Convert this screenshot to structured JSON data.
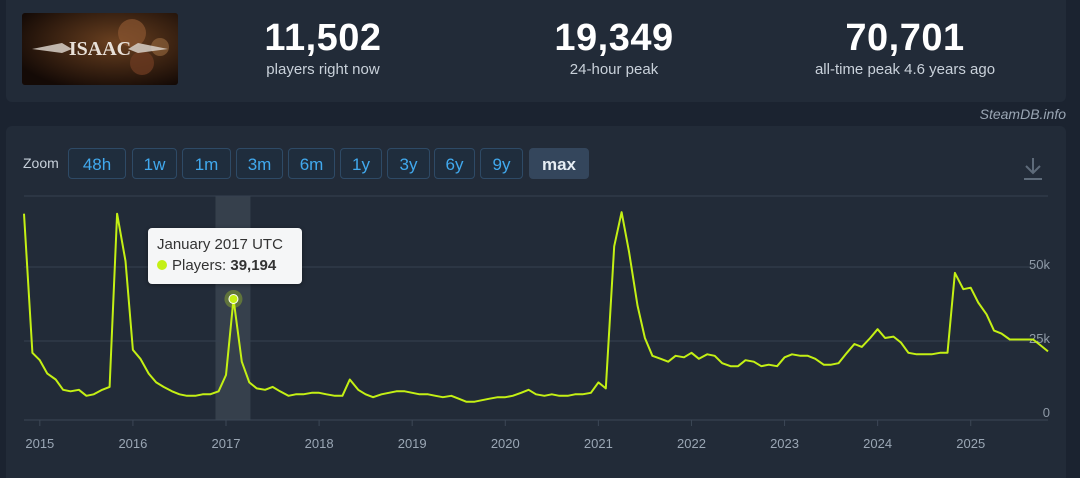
{
  "stats": [
    {
      "value": "11,502",
      "label": "players right now"
    },
    {
      "value": "19,349",
      "label": "24-hour peak"
    },
    {
      "value": "70,701",
      "label": "all-time peak 4.6 years ago"
    }
  ],
  "game_logo_text": "ISAAC",
  "source": "SteamDB.info",
  "zoom": {
    "label": "Zoom",
    "buttons": [
      "48h",
      "1w",
      "1m",
      "3m",
      "6m",
      "1y",
      "3y",
      "6y",
      "9y",
      "max"
    ],
    "active": "max"
  },
  "tooltip": {
    "title": "January 2017 UTC",
    "series_label": "Players:",
    "value": "39,194"
  },
  "colors": {
    "line": "#c4f014",
    "accent": "#41a9ee",
    "background": "#1b2330",
    "panel": "#222b38"
  },
  "chart_data": {
    "type": "line",
    "title": "",
    "xlabel": "",
    "ylabel": "",
    "y_ticks": [
      {
        "value": 0,
        "label": "0"
      },
      {
        "value": 25000,
        "label": "25k"
      },
      {
        "value": 50000,
        "label": "50k"
      }
    ],
    "x_ticks": [
      "2015",
      "2016",
      "2017",
      "2018",
      "2019",
      "2020",
      "2021",
      "2022",
      "2023",
      "2024",
      "2025"
    ],
    "ylim": [
      0,
      73000
    ],
    "grid": true,
    "series": [
      {
        "color": "#c4f014",
        "points": [
          [
            2014.83,
            68000
          ],
          [
            2014.92,
            21000
          ],
          [
            2015.0,
            18500
          ],
          [
            2015.08,
            14000
          ],
          [
            2015.17,
            12000
          ],
          [
            2015.25,
            8500
          ],
          [
            2015.33,
            8000
          ],
          [
            2015.42,
            8500
          ],
          [
            2015.5,
            6500
          ],
          [
            2015.58,
            7000
          ],
          [
            2015.67,
            8500
          ],
          [
            2015.75,
            9500
          ],
          [
            2015.83,
            68000
          ],
          [
            2015.92,
            52000
          ],
          [
            2016.0,
            22000
          ],
          [
            2016.08,
            19000
          ],
          [
            2016.17,
            14000
          ],
          [
            2016.25,
            11000
          ],
          [
            2016.33,
            9500
          ],
          [
            2016.42,
            8000
          ],
          [
            2016.5,
            7000
          ],
          [
            2016.58,
            6500
          ],
          [
            2016.67,
            6500
          ],
          [
            2016.75,
            7000
          ],
          [
            2016.83,
            7000
          ],
          [
            2016.92,
            8000
          ],
          [
            2017.0,
            13500
          ],
          [
            2017.08,
            39194
          ],
          [
            2017.17,
            18000
          ],
          [
            2017.25,
            11000
          ],
          [
            2017.33,
            9000
          ],
          [
            2017.42,
            8500
          ],
          [
            2017.5,
            9500
          ],
          [
            2017.58,
            8000
          ],
          [
            2017.67,
            6500
          ],
          [
            2017.75,
            7000
          ],
          [
            2017.83,
            7000
          ],
          [
            2017.92,
            7500
          ],
          [
            2018.0,
            7500
          ],
          [
            2018.08,
            7000
          ],
          [
            2018.17,
            6500
          ],
          [
            2018.25,
            6500
          ],
          [
            2018.33,
            12000
          ],
          [
            2018.42,
            8500
          ],
          [
            2018.5,
            7000
          ],
          [
            2018.58,
            6000
          ],
          [
            2018.67,
            7000
          ],
          [
            2018.75,
            7500
          ],
          [
            2018.83,
            8000
          ],
          [
            2018.92,
            8000
          ],
          [
            2019.0,
            7500
          ],
          [
            2019.08,
            7000
          ],
          [
            2019.17,
            7000
          ],
          [
            2019.25,
            6500
          ],
          [
            2019.33,
            6000
          ],
          [
            2019.42,
            6500
          ],
          [
            2019.5,
            5500
          ],
          [
            2019.58,
            4500
          ],
          [
            2019.67,
            4500
          ],
          [
            2019.75,
            5000
          ],
          [
            2019.83,
            5500
          ],
          [
            2019.92,
            6000
          ],
          [
            2020.0,
            6000
          ],
          [
            2020.08,
            6500
          ],
          [
            2020.17,
            7500
          ],
          [
            2020.25,
            8500
          ],
          [
            2020.33,
            7000
          ],
          [
            2020.42,
            6500
          ],
          [
            2020.5,
            7000
          ],
          [
            2020.58,
            6500
          ],
          [
            2020.67,
            6500
          ],
          [
            2020.75,
            7000
          ],
          [
            2020.83,
            7000
          ],
          [
            2020.92,
            7500
          ],
          [
            2021.0,
            11000
          ],
          [
            2021.08,
            9000
          ],
          [
            2021.17,
            57000
          ],
          [
            2021.25,
            68500
          ],
          [
            2021.33,
            55000
          ],
          [
            2021.42,
            37000
          ],
          [
            2021.5,
            26000
          ],
          [
            2021.58,
            20000
          ],
          [
            2021.67,
            19000
          ],
          [
            2021.75,
            18000
          ],
          [
            2021.83,
            20000
          ],
          [
            2021.92,
            19500
          ],
          [
            2022.0,
            21000
          ],
          [
            2022.08,
            19000
          ],
          [
            2022.17,
            20500
          ],
          [
            2022.25,
            20000
          ],
          [
            2022.33,
            17500
          ],
          [
            2022.42,
            16500
          ],
          [
            2022.5,
            16500
          ],
          [
            2022.58,
            18500
          ],
          [
            2022.67,
            18000
          ],
          [
            2022.75,
            16500
          ],
          [
            2022.83,
            17000
          ],
          [
            2022.92,
            16500
          ],
          [
            2023.0,
            19500
          ],
          [
            2023.08,
            20500
          ],
          [
            2023.17,
            20000
          ],
          [
            2023.25,
            20000
          ],
          [
            2023.33,
            19000
          ],
          [
            2023.42,
            17000
          ],
          [
            2023.5,
            17000
          ],
          [
            2023.58,
            17500
          ],
          [
            2023.67,
            21000
          ],
          [
            2023.75,
            24000
          ],
          [
            2023.83,
            23000
          ],
          [
            2023.92,
            26000
          ],
          [
            2024.0,
            29000
          ],
          [
            2024.08,
            26000
          ],
          [
            2024.17,
            26500
          ],
          [
            2024.25,
            24500
          ],
          [
            2024.33,
            21000
          ],
          [
            2024.42,
            20500
          ],
          [
            2024.5,
            20500
          ],
          [
            2024.58,
            20500
          ],
          [
            2024.67,
            21000
          ],
          [
            2024.75,
            21000
          ],
          [
            2024.83,
            48000
          ],
          [
            2024.92,
            42500
          ],
          [
            2025.0,
            43000
          ],
          [
            2025.08,
            38000
          ],
          [
            2025.17,
            34000
          ],
          [
            2025.25,
            28500
          ],
          [
            2025.33,
            27500
          ],
          [
            2025.42,
            25500
          ],
          [
            2025.5,
            25500
          ],
          [
            2025.58,
            25500
          ],
          [
            2025.67,
            25500
          ],
          [
            2025.75,
            23500
          ],
          [
            2025.83,
            21500
          ]
        ]
      }
    ],
    "highlight": {
      "x": 2017.08,
      "y": 39194
    }
  }
}
